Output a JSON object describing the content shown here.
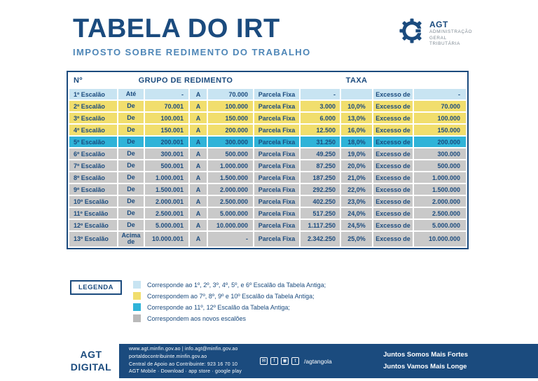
{
  "header": {
    "title": "TABELA DO IRT",
    "subtitle": "IMPOSTO SOBRE REDIMENTO DO TRABALHO",
    "logo": {
      "name": "AGT",
      "org_lines": [
        "ADMINISTRAÇÃO",
        "GERAL",
        "TRIBUTÁRIA"
      ]
    }
  },
  "table": {
    "headers": {
      "no": "Nº",
      "grupo": "GRUPO DE REDIMENTO",
      "taxa": "TAXA"
    },
    "rows": [
      {
        "tier": "blue",
        "no": "1º Escalão",
        "op": "Até",
        "from": "-",
        "a": "A",
        "to": "70.000",
        "parcela_label": "Parcela Fixa",
        "parcela": "-",
        "taxa": "",
        "excesso_label": "Excesso de",
        "excesso": "-"
      },
      {
        "tier": "yellow",
        "no": "2º Escalão",
        "op": "De",
        "from": "70.001",
        "a": "A",
        "to": "100.000",
        "parcela_label": "Parcela Fixa",
        "parcela": "3.000",
        "taxa": "10,0%",
        "excesso_label": "Excesso de",
        "excesso": "70.000"
      },
      {
        "tier": "yellow",
        "no": "3º Escalão",
        "op": "De",
        "from": "100.001",
        "a": "A",
        "to": "150.000",
        "parcela_label": "Parcela Fixa",
        "parcela": "6.000",
        "taxa": "13,0%",
        "excesso_label": "Excesso de",
        "excesso": "100.000"
      },
      {
        "tier": "yellow",
        "no": "4º Escalão",
        "op": "De",
        "from": "150.001",
        "a": "A",
        "to": "200.000",
        "parcela_label": "Parcela Fixa",
        "parcela": "12.500",
        "taxa": "16,0%",
        "excesso_label": "Excesso de",
        "excesso": "150.000"
      },
      {
        "tier": "cyan",
        "no": "5º Escalão",
        "op": "De",
        "from": "200.001",
        "a": "A",
        "to": "300.000",
        "parcela_label": "Parcela Fixa",
        "parcela": "31.250",
        "taxa": "18,0%",
        "excesso_label": "Excesso de",
        "excesso": "200.000"
      },
      {
        "tier": "gray",
        "no": "6º Escalão",
        "op": "De",
        "from": "300.001",
        "a": "A",
        "to": "500.000",
        "parcela_label": "Parcela Fixa",
        "parcela": "49.250",
        "taxa": "19,0%",
        "excesso_label": "Excesso de",
        "excesso": "300.000"
      },
      {
        "tier": "gray",
        "no": "7º Escalão",
        "op": "De",
        "from": "500.001",
        "a": "A",
        "to": "1.000.000",
        "parcela_label": "Parcela Fixa",
        "parcela": "87.250",
        "taxa": "20,0%",
        "excesso_label": "Excesso de",
        "excesso": "500.000"
      },
      {
        "tier": "gray",
        "no": "8º Escalão",
        "op": "De",
        "from": "1.000.001",
        "a": "A",
        "to": "1.500.000",
        "parcela_label": "Parcela Fixa",
        "parcela": "187.250",
        "taxa": "21,0%",
        "excesso_label": "Excesso de",
        "excesso": "1.000.000"
      },
      {
        "tier": "gray",
        "no": "9º Escalão",
        "op": "De",
        "from": "1.500.001",
        "a": "A",
        "to": "2.000.000",
        "parcela_label": "Parcela Fixa",
        "parcela": "292.250",
        "taxa": "22,0%",
        "excesso_label": "Excesso de",
        "excesso": "1.500.000"
      },
      {
        "tier": "gray",
        "no": "10º Escalão",
        "op": "De",
        "from": "2.000.001",
        "a": "A",
        "to": "2.500.000",
        "parcela_label": "Parcela Fixa",
        "parcela": "402.250",
        "taxa": "23,0%",
        "excesso_label": "Excesso de",
        "excesso": "2.000.000"
      },
      {
        "tier": "gray",
        "no": "11º Escalão",
        "op": "De",
        "from": "2.500.001",
        "a": "A",
        "to": "5.000.000",
        "parcela_label": "Parcela Fixa",
        "parcela": "517.250",
        "taxa": "24,0%",
        "excesso_label": "Excesso de",
        "excesso": "2.500.000"
      },
      {
        "tier": "gray",
        "no": "12º Escalão",
        "op": "De",
        "from": "5.000.001",
        "a": "A",
        "to": "10.000.000",
        "parcela_label": "Parcela Fixa",
        "parcela": "1.117.250",
        "taxa": "24,5%",
        "excesso_label": "Excesso de",
        "excesso": "5.000.000"
      },
      {
        "tier": "gray",
        "no": "13º Escalão",
        "op": "Acima de",
        "from": "10.000.001",
        "a": "A",
        "to": "-",
        "parcela_label": "Parcela Fixa",
        "parcela": "2.342.250",
        "taxa": "25,0%",
        "excesso_label": "Excesso de",
        "excesso": "10.000.000"
      }
    ]
  },
  "legend": {
    "label": "LEGENDA",
    "items": [
      {
        "color": "#c8e4f2",
        "text": "Corresponde ao 1º, 2º, 3º, 4º, 5º, e 6º Escalão da Tabela Antiga;"
      },
      {
        "color": "#f1de6d",
        "text": "Correspondem ao 7º, 8º, 9º e 10º Escalão da Tabela Antiga;"
      },
      {
        "color": "#2fb3d8",
        "text": "Corresponde ao 11º, 12º Escalão da Tabela Antiga;"
      },
      {
        "color": "#b9b9b9",
        "text": "Correspondem aos novos escalões"
      }
    ]
  },
  "footer": {
    "brand": [
      "AGT",
      "DIGITAL"
    ],
    "contact_lines": [
      "www.agt.minfin.gov.ao | info.agt@minfin.gov.ao",
      "portaldocontribuinte.minfin.gov.ao",
      "Central de Apoio ao Contribuinte: 923 16 70 10",
      "AGT Mobile · Download · app store · google play"
    ],
    "social_icons": [
      {
        "name": "email-icon",
        "glyph": "✉"
      },
      {
        "name": "facebook-icon",
        "glyph": "f"
      },
      {
        "name": "instagram-icon",
        "glyph": "◉"
      },
      {
        "name": "twitter-icon",
        "glyph": "t"
      }
    ],
    "social_handle": "/agtangola",
    "slogans": [
      "Juntos Somos Mais Fortes",
      "Juntos Vamos Mais Longe"
    ]
  },
  "colors": {
    "navy": "#1b4b7e",
    "subtitle_blue": "#4e86b7",
    "row_blue": "#c8e4f2",
    "row_yellow": "#f1de6d",
    "row_cyan": "#2fb3d8",
    "row_gray": "#c9c9c9"
  }
}
